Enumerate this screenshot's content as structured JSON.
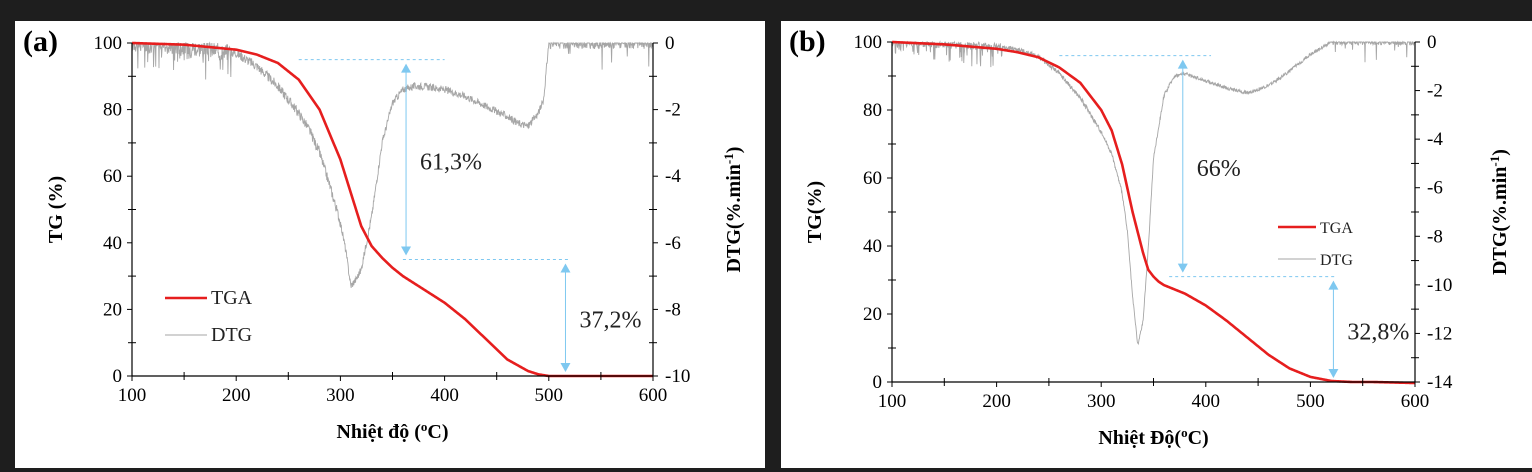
{
  "colors": {
    "tga": "#e61e1e",
    "dtg": "#a6a6a6",
    "arrow": "#7ec8f0",
    "axis": "#000000"
  },
  "chart_data": [
    {
      "type": "line",
      "panel_label": "(a)",
      "xlabel": "Nhiệt độ (",
      "xlabel_sup": "o",
      "xlabel_tail": "C)",
      "ylabel": "TG (%)",
      "y2label": "DTG(%.min",
      "y2label_sup": "-1",
      "y2label_tail": ")",
      "xlim": [
        100,
        600
      ],
      "ylim": [
        0,
        100
      ],
      "y2lim": [
        -10,
        0
      ],
      "xticks": [
        100,
        200,
        300,
        400,
        500,
        600
      ],
      "yticks": [
        0,
        20,
        40,
        60,
        80,
        100
      ],
      "y2ticks": [
        0,
        -2,
        -4,
        -6,
        -8,
        -10
      ],
      "legend": [
        "TGA",
        "DTG"
      ],
      "legend_position": "bottom-left",
      "series": [
        {
          "name": "TGA",
          "axis": "left",
          "x": [
            100,
            150,
            200,
            220,
            240,
            260,
            280,
            300,
            310,
            320,
            330,
            340,
            345,
            350,
            360,
            380,
            400,
            420,
            440,
            460,
            480,
            490,
            500,
            510,
            520,
            600
          ],
          "y": [
            100,
            99.5,
            98,
            96.5,
            94,
            89,
            80,
            65,
            55,
            45,
            39,
            35.5,
            34,
            32.5,
            30,
            26,
            22,
            17,
            11,
            5,
            1.5,
            0.5,
            0,
            0,
            0,
            0
          ]
        },
        {
          "name": "DTG",
          "axis": "right",
          "x": [
            100,
            150,
            200,
            220,
            240,
            260,
            270,
            280,
            290,
            300,
            305,
            310,
            315,
            320,
            330,
            340,
            350,
            360,
            370,
            380,
            400,
            420,
            440,
            460,
            470,
            480,
            490,
            495,
            500,
            510,
            520,
            540,
            560,
            600
          ],
          "y": [
            0,
            -0.1,
            -0.3,
            -0.7,
            -1.3,
            -2.1,
            -2.6,
            -3.3,
            -4.3,
            -5.4,
            -6.2,
            -7.3,
            -7.1,
            -6.8,
            -5.2,
            -3.0,
            -1.8,
            -1.4,
            -1.3,
            -1.3,
            -1.4,
            -1.6,
            -1.9,
            -2.2,
            -2.4,
            -2.5,
            -2.1,
            -1.7,
            0,
            0,
            0,
            0,
            0,
            0
          ]
        }
      ],
      "annotations": [
        {
          "text": "61,3%",
          "x": 363,
          "from": 95,
          "to": 35
        },
        {
          "text": "37,2%",
          "x": 516,
          "from": 35,
          "to": 0
        }
      ],
      "dashed_levels": [
        {
          "y": 95,
          "x1": 260,
          "x2": 400
        },
        {
          "y": 35,
          "x1": 360,
          "x2": 520
        }
      ]
    },
    {
      "type": "line",
      "panel_label": "(b)",
      "xlabel": "Nhiệt Độ(",
      "xlabel_sup": "o",
      "xlabel_tail": "C)",
      "ylabel": "TG(%)",
      "y2label": "DTG(%.min",
      "y2label_sup": "-1",
      "y2label_tail": ")",
      "xlim": [
        100,
        600
      ],
      "ylim": [
        0,
        100
      ],
      "y2lim": [
        -14,
        0
      ],
      "xticks": [
        100,
        200,
        300,
        400,
        500,
        600
      ],
      "yticks": [
        0,
        20,
        40,
        60,
        80,
        100
      ],
      "y2ticks": [
        0,
        -2,
        -4,
        -6,
        -8,
        -10,
        -12,
        -14
      ],
      "legend": [
        "TGA",
        "DTG"
      ],
      "legend_position": "right",
      "series": [
        {
          "name": "TGA",
          "axis": "left",
          "x": [
            100,
            150,
            200,
            220,
            240,
            260,
            280,
            300,
            310,
            320,
            330,
            340,
            345,
            350,
            355,
            360,
            380,
            400,
            420,
            440,
            460,
            480,
            500,
            520,
            540,
            560,
            600
          ],
          "y": [
            100,
            99.3,
            98,
            97,
            95.5,
            92.5,
            88,
            80,
            74,
            64,
            50,
            38,
            33,
            31,
            29.5,
            28.5,
            26,
            22.5,
            18,
            13,
            8,
            4,
            1.5,
            0.3,
            0,
            0,
            -0.3
          ]
        },
        {
          "name": "DTG",
          "axis": "right",
          "x": [
            100,
            150,
            200,
            220,
            240,
            260,
            280,
            300,
            310,
            320,
            325,
            330,
            335,
            340,
            345,
            350,
            360,
            370,
            380,
            400,
            420,
            440,
            460,
            480,
            500,
            520,
            540,
            560,
            600
          ],
          "y": [
            0,
            -0.1,
            -0.2,
            -0.3,
            -0.6,
            -1.3,
            -2.3,
            -3.7,
            -4.6,
            -6.2,
            -7.8,
            -10.5,
            -12.5,
            -11.5,
            -8.5,
            -4.8,
            -2.2,
            -1.4,
            -1.3,
            -1.6,
            -1.9,
            -2.1,
            -1.8,
            -1.2,
            -0.5,
            0,
            0,
            0,
            0
          ]
        }
      ],
      "annotations": [
        {
          "text": "66%",
          "x": 378,
          "from": 96,
          "to": 31
        },
        {
          "text": "32,8%",
          "x": 522,
          "from": 31,
          "to": 0
        }
      ],
      "dashed_levels": [
        {
          "y": 96,
          "x1": 260,
          "x2": 405
        },
        {
          "y": 31,
          "x1": 365,
          "x2": 525
        }
      ]
    }
  ]
}
